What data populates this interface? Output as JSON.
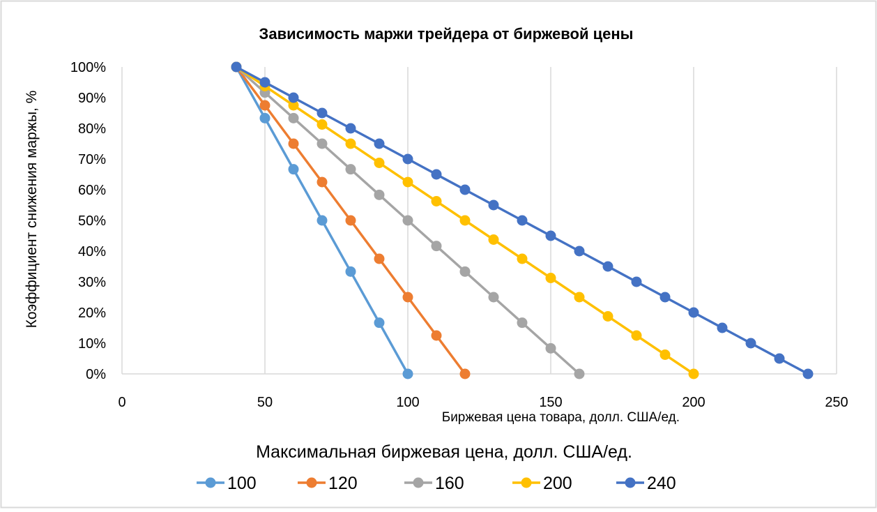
{
  "chart_data": {
    "type": "line",
    "title": "Зависимость маржи трейдера от биржевой цены",
    "xlabel": "Биржевая цена товара, долл. США/ед.",
    "ylabel": "Коэффициент снижения маржы, %",
    "xlim": [
      0,
      250
    ],
    "ylim": [
      0,
      100
    ],
    "x_ticks": [
      "0",
      "50",
      "100",
      "150",
      "200",
      "250"
    ],
    "y_ticks": [
      "0%",
      "10%",
      "20%",
      "30%",
      "40%",
      "50%",
      "60%",
      "70%",
      "80%",
      "90%",
      "100%"
    ],
    "grid": "vertical",
    "legend_title": "Максимальная биржевая цена, долл. США/ед.",
    "legend_position": "bottom",
    "series": [
      {
        "name": "100",
        "color": "#5B9BD5",
        "x": [
          40,
          50,
          60,
          70,
          80,
          90,
          100
        ],
        "y": [
          100,
          83.33,
          66.67,
          50,
          33.33,
          16.67,
          0
        ]
      },
      {
        "name": "120",
        "color": "#ED7D31",
        "x": [
          40,
          50,
          60,
          70,
          80,
          90,
          100,
          110,
          120
        ],
        "y": [
          100,
          87.5,
          75,
          62.5,
          50,
          37.5,
          25,
          12.5,
          0
        ]
      },
      {
        "name": "160",
        "color": "#A5A5A5",
        "x": [
          40,
          50,
          60,
          70,
          80,
          90,
          100,
          110,
          120,
          130,
          140,
          150,
          160
        ],
        "y": [
          100,
          91.67,
          83.33,
          75,
          66.67,
          58.33,
          50,
          41.67,
          33.33,
          25,
          16.67,
          8.33,
          0
        ]
      },
      {
        "name": "200",
        "color": "#FFC000",
        "x": [
          40,
          50,
          60,
          70,
          80,
          90,
          100,
          110,
          120,
          130,
          140,
          150,
          160,
          170,
          180,
          190,
          200
        ],
        "y": [
          100,
          93.75,
          87.5,
          81.25,
          75,
          68.75,
          62.5,
          56.25,
          50,
          43.75,
          37.5,
          31.25,
          25,
          18.75,
          12.5,
          6.25,
          0
        ]
      },
      {
        "name": "240",
        "color": "#4472C4",
        "x": [
          40,
          50,
          60,
          70,
          80,
          90,
          100,
          110,
          120,
          130,
          140,
          150,
          160,
          170,
          180,
          190,
          200,
          210,
          220,
          230,
          240
        ],
        "y": [
          100,
          95,
          90,
          85,
          80,
          75,
          70,
          65,
          60,
          55,
          50,
          45,
          40,
          35,
          30,
          25,
          20,
          15,
          10,
          5,
          0
        ]
      }
    ]
  }
}
